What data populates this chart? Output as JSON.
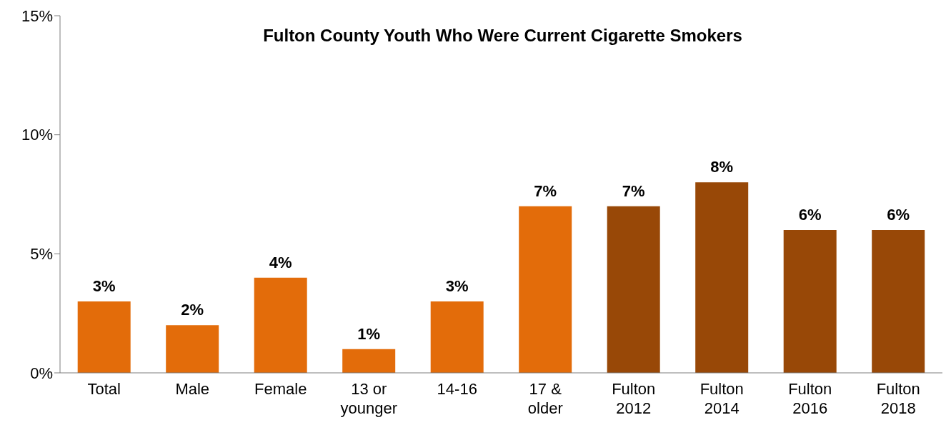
{
  "chart_data": {
    "type": "bar",
    "title": "Fulton County Youth Who Were Current Cigarette Smokers",
    "categories": [
      "Total",
      "Male",
      "Female",
      "13 or younger",
      "14-16",
      "17 & older",
      "Fulton 2012",
      "Fulton 2014",
      "Fulton 2016",
      "Fulton 2018"
    ],
    "values": [
      3,
      2,
      4,
      1,
      3,
      7,
      7,
      8,
      6,
      6
    ],
    "colors": [
      "#e36c0a",
      "#e36c0a",
      "#e36c0a",
      "#e36c0a",
      "#e36c0a",
      "#e36c0a",
      "#984807",
      "#984807",
      "#984807",
      "#984807"
    ],
    "value_labels": [
      "3%",
      "2%",
      "4%",
      "1%",
      "3%",
      "7%",
      "7%",
      "8%",
      "6%",
      "6%"
    ],
    "ylim": [
      0,
      15
    ],
    "yticks": [
      {
        "value": 0,
        "label": "0%"
      },
      {
        "value": 5,
        "label": "5%"
      },
      {
        "value": 10,
        "label": "10%"
      },
      {
        "value": 15,
        "label": "15%"
      }
    ],
    "grid": false,
    "legend": false
  }
}
